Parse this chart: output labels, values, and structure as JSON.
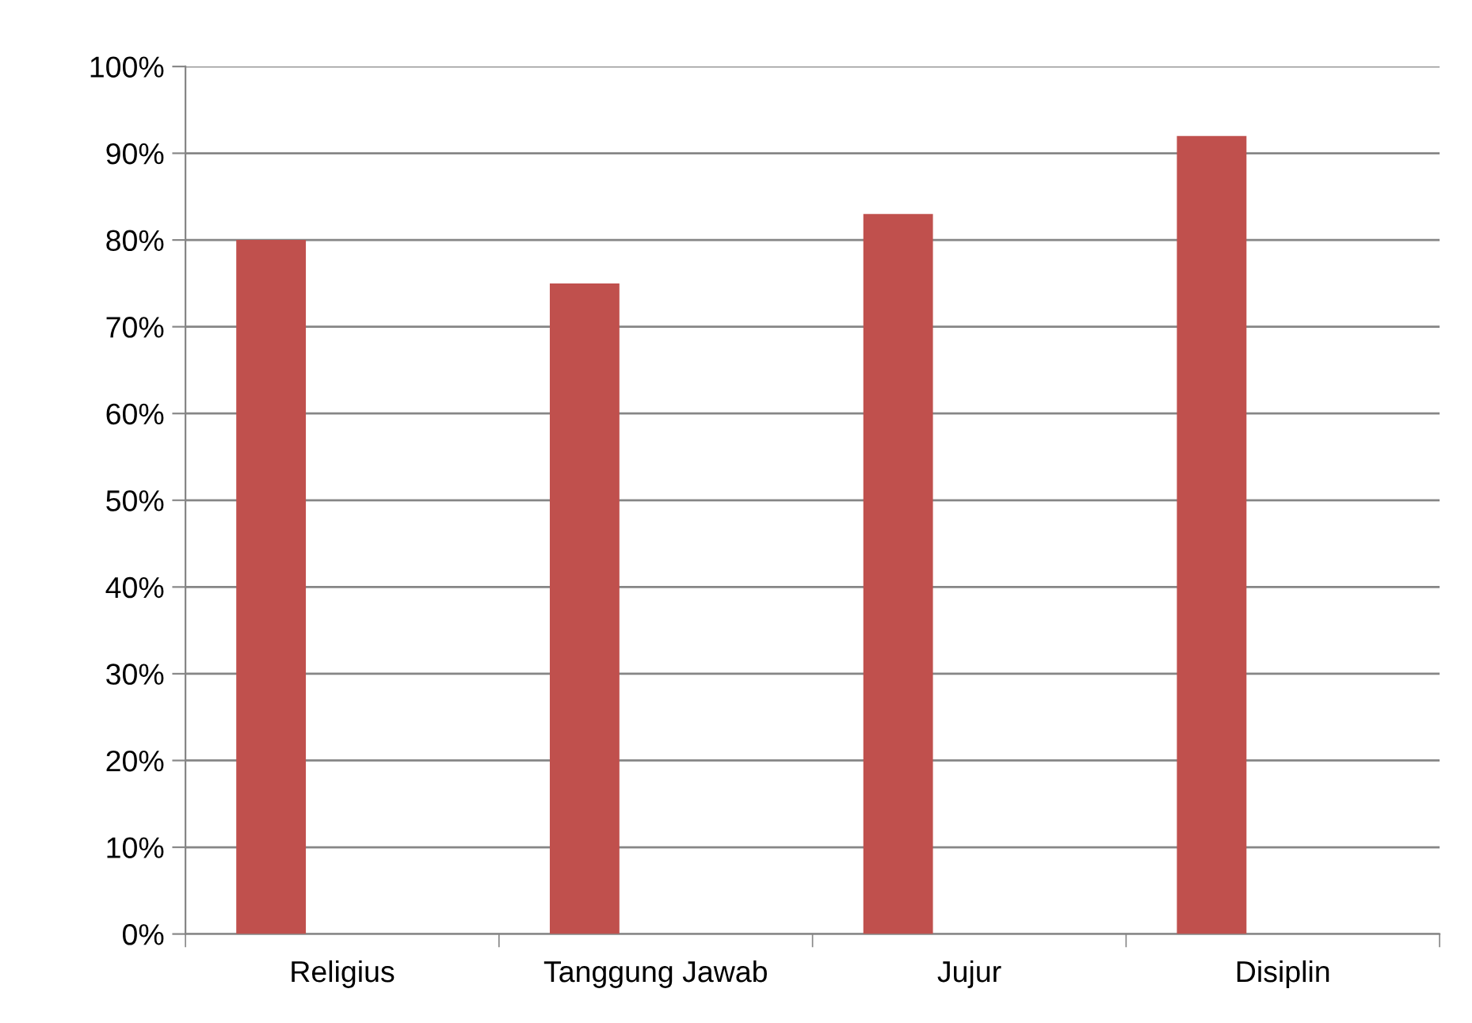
{
  "chart_data": {
    "type": "bar",
    "categories": [
      "Religius",
      "Tanggung Jawab",
      "Jujur",
      "Disiplin"
    ],
    "values": [
      80,
      75,
      83,
      92
    ],
    "color": "#c0504d",
    "ylim": [
      0,
      100
    ],
    "yticks": [
      {
        "value": 0,
        "label": "0%"
      },
      {
        "value": 10,
        "label": "10%"
      },
      {
        "value": 20,
        "label": "20%"
      },
      {
        "value": 30,
        "label": "30%"
      },
      {
        "value": 40,
        "label": "40%"
      },
      {
        "value": 50,
        "label": "50%"
      },
      {
        "value": 60,
        "label": "60%"
      },
      {
        "value": 70,
        "label": "70%"
      },
      {
        "value": 80,
        "label": "80%"
      },
      {
        "value": 90,
        "label": "90%"
      },
      {
        "value": 100,
        "label": "100%"
      }
    ],
    "grid": "y",
    "legend": false
  }
}
